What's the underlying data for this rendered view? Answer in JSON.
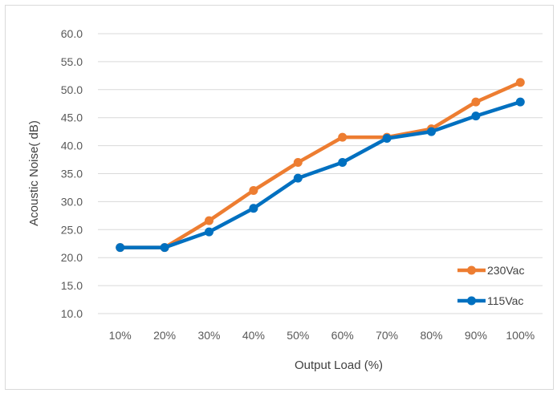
{
  "chart_data": {
    "type": "line",
    "categories": [
      "10%",
      "20%",
      "30%",
      "40%",
      "50%",
      "60%",
      "70%",
      "80%",
      "90%",
      "100%"
    ],
    "series": [
      {
        "name": "230Vac",
        "color": "#ED7D31",
        "values": [
          21.8,
          21.8,
          26.6,
          32.0,
          37.0,
          41.5,
          41.5,
          43.0,
          47.8,
          51.3
        ]
      },
      {
        "name": "115Vac",
        "color": "#0070C0",
        "values": [
          21.8,
          21.8,
          24.6,
          28.8,
          34.2,
          37.0,
          41.3,
          42.5,
          45.3,
          47.8
        ]
      }
    ],
    "xlabel": "Output Load (%)",
    "ylabel": "Acoustic Noise( dB)",
    "ylim": [
      10,
      60
    ],
    "yticks": [
      "10.0",
      "15.0",
      "20.0",
      "25.0",
      "30.0",
      "35.0",
      "40.0",
      "45.0",
      "50.0",
      "55.0",
      "60.0"
    ],
    "grid": true,
    "legend_position": "bottom-right"
  }
}
